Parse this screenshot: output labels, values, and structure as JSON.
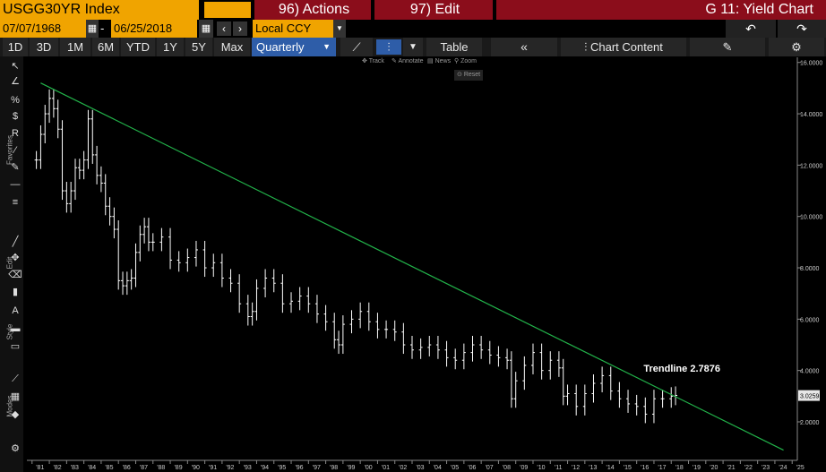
{
  "header": {
    "ticker": "USGG30YR Index",
    "actions": "96) Actions",
    "edit": "97) Edit",
    "function_title": "G 11: Yield Chart"
  },
  "range": {
    "start_date": "07/07/1968",
    "dash": "-",
    "end_date": "06/25/2018",
    "currency": "Local CCY"
  },
  "toolbar": {
    "periods": [
      "1D",
      "3D",
      "1M",
      "6M",
      "YTD",
      "1Y",
      "5Y",
      "Max"
    ],
    "frequency": "Quarterly",
    "table_label": "Table",
    "chart_content": "Chart Content"
  },
  "chart_tools": {
    "track": "Track",
    "annotate": "Annotate",
    "news": "News",
    "zoom": "Zoom",
    "reset": "Reset"
  },
  "sidebar_labels": [
    "Favorites",
    "Edit",
    "Style",
    "Modes"
  ],
  "icons": [
    "cursor-icon",
    "line-draw-icon",
    "percent-icon",
    "dollar-icon",
    "r-icon",
    "brush-icon",
    "pencil-icon",
    "horizontal-line-icon",
    "fib-icon",
    "line-icon",
    "move-icon",
    "eraser-icon",
    "trash-icon",
    "text-icon",
    "thick-line-icon",
    "thin-line-icon",
    "ruler-icon",
    "grid-icon",
    "color-icon",
    "settings-icon"
  ],
  "colors": {
    "amber": "#f0a400",
    "red": "#8b0d1b",
    "selected": "#2e5da8",
    "trendline": "#22b34a",
    "bars": "#ffffff"
  },
  "chart_data": {
    "type": "line",
    "series": [
      {
        "name": "",
        "x": [
          1981.25,
          1981.5,
          1981.75,
          1982,
          1982.25,
          1982.5,
          1982.75,
          1983,
          1983.25,
          1983.5,
          1983.75,
          1984,
          1984.25,
          1984.5,
          1984.75,
          1985,
          1985.25,
          1985.5,
          1985.75,
          1986,
          1986.25,
          1986.5,
          1986.75,
          1987,
          1987.25,
          1987.5,
          1987.75,
          1988,
          1988.5,
          1989,
          1989.5,
          1990,
          1990.5,
          1991,
          1991.5,
          1992,
          1992.5,
          1993,
          1993.5,
          1993.75,
          1994,
          1994.5,
          1995,
          1995.5,
          1996,
          1996.5,
          1997,
          1997.5,
          1998,
          1998.5,
          1998.75,
          1999,
          1999.5,
          2000,
          2000.5,
          2001,
          2001.5,
          2002,
          2002.5,
          2003,
          2003.5,
          2004,
          2004.5,
          2005,
          2005.5,
          2006,
          2006.5,
          2007,
          2007.5,
          2008,
          2008.5,
          2008.75,
          2009,
          2009.5,
          2010,
          2010.5,
          2011,
          2011.5,
          2011.75,
          2012,
          2012.5,
          2013,
          2013.5,
          2014,
          2014.5,
          2015,
          2015.5,
          2016,
          2016.5,
          2017,
          2017.5,
          2018,
          2018.25
        ],
        "y": [
          12.2,
          13.2,
          14.0,
          14.6,
          14.2,
          13.4,
          11.0,
          10.5,
          11.0,
          11.9,
          11.8,
          12.2,
          13.8,
          12.4,
          11.6,
          11.3,
          10.4,
          10.0,
          9.5,
          7.5,
          7.3,
          7.5,
          7.6,
          8.6,
          9.3,
          9.6,
          9.0,
          9.0,
          9.2,
          8.3,
          8.2,
          8.4,
          8.7,
          8.0,
          8.2,
          7.6,
          7.4,
          6.6,
          6.1,
          6.3,
          7.2,
          7.6,
          7.4,
          6.6,
          6.7,
          6.9,
          6.6,
          6.2,
          5.9,
          5.2,
          5.0,
          5.8,
          6.0,
          6.3,
          5.9,
          5.6,
          5.6,
          5.5,
          5.0,
          4.8,
          4.9,
          5.0,
          4.8,
          4.5,
          4.4,
          4.7,
          5.0,
          4.8,
          4.6,
          4.5,
          4.4,
          2.9,
          3.6,
          4.2,
          4.7,
          4.0,
          4.4,
          4.1,
          3.0,
          3.1,
          2.6,
          3.1,
          3.5,
          3.8,
          3.2,
          2.9,
          2.7,
          2.6,
          2.3,
          2.9,
          2.9,
          3.0,
          3.03
        ]
      }
    ],
    "trendline": {
      "label": "Trendline 2.7876",
      "x": [
        1981.5,
        2024.5
      ],
      "y": [
        15.2,
        0.9
      ]
    },
    "last_value": "3.0259",
    "x_ticks": [
      "'81",
      "'82",
      "'83",
      "'84",
      "'85",
      "'86",
      "'87",
      "'88",
      "'89",
      "'90",
      "'91",
      "'92",
      "'93",
      "'94",
      "'95",
      "'96",
      "'97",
      "'98",
      "'99",
      "'00",
      "'01",
      "'02",
      "'03",
      "'04",
      "'05",
      "'06",
      "'07",
      "'08",
      "'09",
      "'10",
      "'11",
      "'12",
      "'13",
      "'14",
      "'15",
      "'16",
      "'17",
      "'18",
      "'19",
      "'20",
      "'21",
      "'22",
      "'23",
      "'24",
      "'25"
    ],
    "y_ticks": [
      "2.0000",
      "4.0000",
      "6.0000",
      "8.0000",
      "10.0000",
      "12.0000",
      "14.0000",
      "16.0000"
    ],
    "xlim": [
      1980.7,
      2025.3
    ],
    "ylim": [
      0.5,
      16.2
    ],
    "grid": false
  }
}
